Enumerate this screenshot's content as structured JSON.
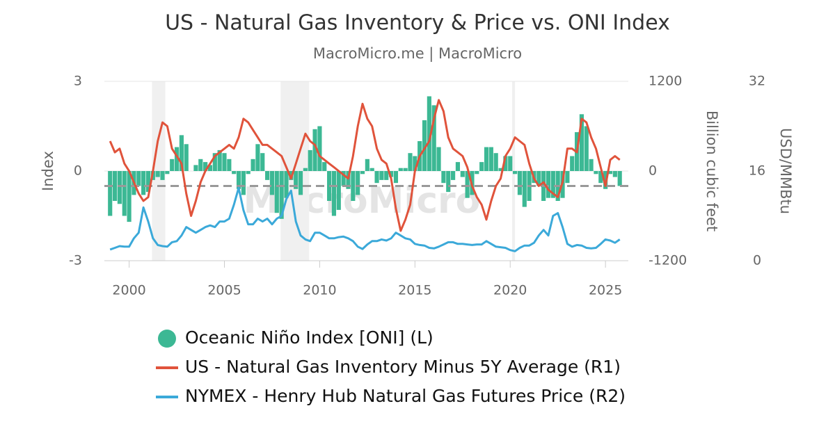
{
  "chart_data": {
    "type": "bar-line",
    "title": "US - Natural Gas Inventory & Price vs. ONI Index",
    "subtitle": "MacroMicro.me | MacroMicro",
    "watermark": "MacroMicro",
    "y_label": "Index",
    "y2_label": "Billion cubic feet",
    "y3_label": "USD/MMBtu",
    "xlim": [
      1998.7,
      2026.2
    ],
    "xticks": [
      2000,
      2005,
      2010,
      2015,
      2020,
      2025
    ],
    "ylim": [
      -3,
      3
    ],
    "yticks": [
      -3,
      0,
      3
    ],
    "y2lim": [
      -1200,
      1200
    ],
    "y2ticks": [
      -1200,
      0,
      1200
    ],
    "y3lim": [
      0,
      32
    ],
    "y3ticks": [
      0,
      16,
      32
    ],
    "grid": true,
    "reference_line": -0.5,
    "shaded_ranges": [
      [
        2001.2,
        2001.9
      ],
      [
        2007.95,
        2009.45
      ],
      [
        2020.1,
        2020.25
      ]
    ],
    "x": [
      1999,
      1999.25,
      1999.5,
      1999.75,
      2000,
      2000.25,
      2000.5,
      2000.75,
      2001,
      2001.25,
      2001.5,
      2001.75,
      2002,
      2002.25,
      2002.5,
      2002.75,
      2003,
      2003.25,
      2003.5,
      2003.75,
      2004,
      2004.25,
      2004.5,
      2004.75,
      2005,
      2005.25,
      2005.5,
      2005.75,
      2006,
      2006.25,
      2006.5,
      2006.75,
      2007,
      2007.25,
      2007.5,
      2007.75,
      2008,
      2008.25,
      2008.5,
      2008.75,
      2009,
      2009.25,
      2009.5,
      2009.75,
      2010,
      2010.25,
      2010.5,
      2010.75,
      2011,
      2011.25,
      2011.5,
      2011.75,
      2012,
      2012.25,
      2012.5,
      2012.75,
      2013,
      2013.25,
      2013.5,
      2013.75,
      2014,
      2014.25,
      2014.5,
      2014.75,
      2015,
      2015.25,
      2015.5,
      2015.75,
      2016,
      2016.25,
      2016.5,
      2016.75,
      2017,
      2017.25,
      2017.5,
      2017.75,
      2018,
      2018.25,
      2018.5,
      2018.75,
      2019,
      2019.25,
      2019.5,
      2019.75,
      2020,
      2020.25,
      2020.5,
      2020.75,
      2021,
      2021.25,
      2021.5,
      2021.75,
      2022,
      2022.25,
      2022.5,
      2022.75,
      2023,
      2023.25,
      2023.5,
      2023.75,
      2024,
      2024.25,
      2024.5,
      2024.75,
      2025,
      2025.25,
      2025.5,
      2025.75
    ],
    "series": [
      {
        "name": "Oceanic Niño Index [ONI] (L)",
        "color": "#3cb894",
        "kind": "bar",
        "axis": "y",
        "values": [
          -1.5,
          -1.0,
          -1.1,
          -1.5,
          -1.7,
          -0.8,
          -0.5,
          -0.8,
          -0.7,
          -0.3,
          -0.2,
          -0.3,
          -0.1,
          0.4,
          0.8,
          1.2,
          0.9,
          0.0,
          0.2,
          0.4,
          0.3,
          0.2,
          0.6,
          0.7,
          0.6,
          0.4,
          -0.1,
          -0.6,
          -0.8,
          -0.1,
          0.4,
          0.9,
          0.6,
          -0.3,
          -0.8,
          -1.4,
          -1.6,
          -0.9,
          -0.3,
          -0.6,
          -0.8,
          0.1,
          0.7,
          1.4,
          1.5,
          0.3,
          -1.0,
          -1.5,
          -1.3,
          -0.5,
          -0.6,
          -1.0,
          -0.8,
          -0.1,
          0.4,
          0.1,
          -0.4,
          -0.3,
          -0.3,
          -0.2,
          -0.4,
          0.1,
          0.1,
          0.6,
          0.5,
          1.0,
          1.7,
          2.5,
          2.2,
          0.8,
          -0.4,
          -0.7,
          -0.3,
          0.3,
          -0.2,
          -0.9,
          -0.8,
          -0.1,
          0.3,
          0.8,
          0.8,
          0.6,
          0.1,
          0.5,
          0.5,
          -0.1,
          -0.8,
          -1.2,
          -1.0,
          -0.4,
          -0.5,
          -1.0,
          -0.9,
          -0.9,
          -1.0,
          -0.9,
          -0.4,
          0.5,
          1.3,
          1.9,
          1.5,
          0.4,
          -0.1,
          -0.4,
          -0.6,
          -0.1,
          -0.2,
          -0.5
        ]
      },
      {
        "name": "US - Natural Gas Inventory Minus 5Y Average (R1)",
        "color": "#e0533b",
        "kind": "line",
        "axis": "y2",
        "values": [
          400,
          250,
          300,
          100,
          0,
          -150,
          -300,
          -400,
          -350,
          0,
          400,
          650,
          600,
          300,
          200,
          100,
          -300,
          -600,
          -400,
          -150,
          0,
          100,
          200,
          250,
          300,
          350,
          300,
          450,
          700,
          650,
          550,
          450,
          350,
          350,
          300,
          250,
          200,
          50,
          -100,
          100,
          300,
          500,
          400,
          350,
          200,
          150,
          100,
          50,
          0,
          -50,
          -100,
          200,
          600,
          900,
          700,
          600,
          300,
          150,
          100,
          -100,
          -500,
          -800,
          -650,
          -450,
          0,
          200,
          300,
          400,
          700,
          950,
          800,
          450,
          300,
          250,
          200,
          50,
          -200,
          -350,
          -450,
          -650,
          -400,
          -200,
          -100,
          200,
          300,
          450,
          400,
          350,
          100,
          -100,
          -200,
          -150,
          -250,
          -300,
          -350,
          -150,
          300,
          300,
          250,
          700,
          650,
          450,
          300,
          50,
          -200,
          150,
          200,
          150
        ]
      },
      {
        "name": "NYMEX - Henry Hub Natural Gas Futures Price (R2)",
        "color": "#3ba9d9",
        "kind": "line",
        "axis": "y3",
        "values": [
          2.0,
          2.3,
          2.6,
          2.5,
          2.5,
          4.0,
          5.0,
          9.5,
          7.0,
          4.0,
          2.8,
          2.6,
          2.5,
          3.3,
          3.5,
          4.5,
          6.0,
          5.5,
          5.0,
          5.5,
          6.0,
          6.3,
          6.0,
          7.0,
          7.0,
          7.5,
          10.0,
          13.0,
          9.0,
          6.5,
          6.5,
          7.5,
          7.0,
          7.5,
          6.5,
          7.5,
          8.0,
          11.0,
          12.5,
          7.0,
          4.5,
          3.8,
          3.5,
          5.0,
          5.0,
          4.5,
          4.0,
          4.0,
          4.2,
          4.3,
          4.0,
          3.5,
          2.5,
          2.1,
          2.9,
          3.5,
          3.5,
          3.8,
          3.6,
          4.0,
          5.0,
          4.5,
          4.0,
          3.8,
          3.0,
          2.8,
          2.7,
          2.3,
          2.2,
          2.5,
          2.9,
          3.3,
          3.3,
          3.0,
          3.0,
          2.9,
          2.8,
          2.9,
          2.9,
          3.5,
          3.0,
          2.5,
          2.4,
          2.3,
          1.9,
          1.7,
          2.3,
          2.7,
          2.7,
          3.2,
          4.5,
          5.5,
          4.5,
          8.0,
          8.5,
          6.0,
          3.0,
          2.5,
          2.8,
          2.7,
          2.3,
          2.2,
          2.3,
          3.0,
          3.8,
          3.6,
          3.2,
          3.8
        ]
      }
    ]
  }
}
